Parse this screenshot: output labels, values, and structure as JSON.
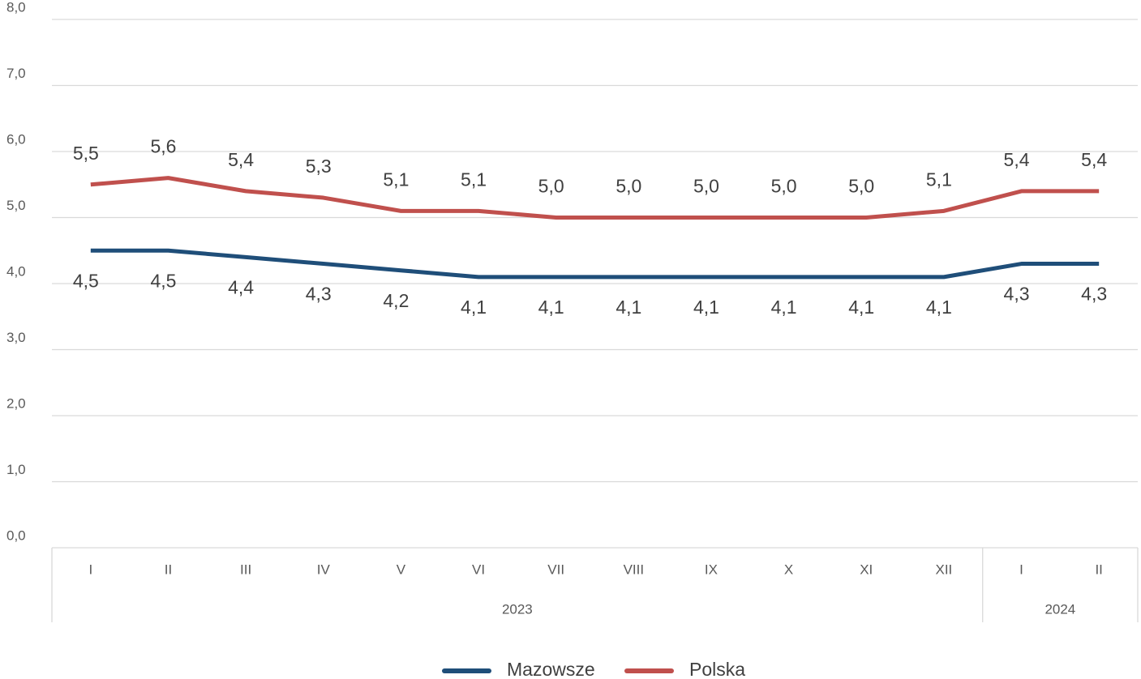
{
  "chart_data": {
    "type": "line",
    "categories": [
      "I",
      "II",
      "III",
      "IV",
      "V",
      "VI",
      "VII",
      "VIII",
      "IX",
      "X",
      "XI",
      "XII",
      "I",
      "II"
    ],
    "x_groups": [
      {
        "label": "2023",
        "count": 12
      },
      {
        "label": "2024",
        "count": 2
      }
    ],
    "series": [
      {
        "name": "Mazowsze",
        "color": "#1f4e79",
        "values": [
          4.5,
          4.5,
          4.4,
          4.3,
          4.2,
          4.1,
          4.1,
          4.1,
          4.1,
          4.1,
          4.1,
          4.1,
          4.3,
          4.3
        ],
        "value_labels": [
          "4,5",
          "4,5",
          "4,4",
          "4,3",
          "4,2",
          "4,1",
          "4,1",
          "4,1",
          "4,1",
          "4,1",
          "4,1",
          "4,1",
          "4,3",
          "4,3"
        ],
        "label_position": "below"
      },
      {
        "name": "Polska",
        "color": "#c0504d",
        "values": [
          5.5,
          5.6,
          5.4,
          5.3,
          5.1,
          5.1,
          5.0,
          5.0,
          5.0,
          5.0,
          5.0,
          5.1,
          5.4,
          5.4
        ],
        "value_labels": [
          "5,5",
          "5,6",
          "5,4",
          "5,3",
          "5,1",
          "5,1",
          "5,0",
          "5,0",
          "5,0",
          "5,0",
          "5,0",
          "5,1",
          "5,4",
          "5,4"
        ],
        "label_position": "above"
      }
    ],
    "ylim": [
      0,
      8
    ],
    "yticks": [
      {
        "value": 0,
        "label": "0,0"
      },
      {
        "value": 1,
        "label": "1,0"
      },
      {
        "value": 2,
        "label": "2,0"
      },
      {
        "value": 3,
        "label": "3,0"
      },
      {
        "value": 4,
        "label": "4,0"
      },
      {
        "value": 5,
        "label": "5,0"
      },
      {
        "value": 6,
        "label": "6,0"
      },
      {
        "value": 7,
        "label": "7,0"
      },
      {
        "value": 8,
        "label": "8,0"
      }
    ],
    "grid": true,
    "legend": "bottom"
  }
}
